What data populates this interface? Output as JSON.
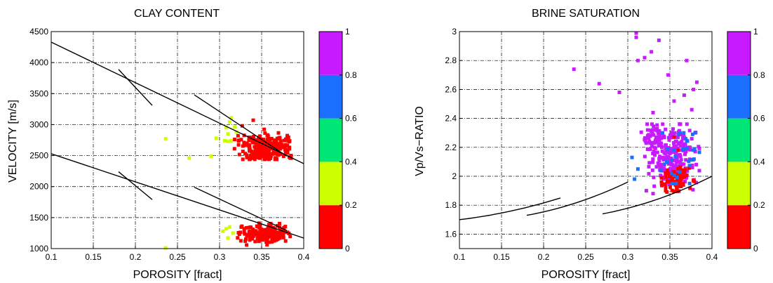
{
  "chart_data": [
    {
      "type": "scatter",
      "title": "CLAY CONTENT",
      "xlabel": "POROSITY [fract]",
      "ylabel": "VELOCITY [m/s]",
      "xlim": [
        0.1,
        0.4
      ],
      "ylim": [
        1000,
        4500
      ],
      "xticks": [
        "0.1",
        "0.15",
        "0.2",
        "0.25",
        "0.3",
        "0.35",
        "0.4"
      ],
      "yticks": [
        "1000",
        "1500",
        "2000",
        "2500",
        "3000",
        "3500",
        "4000",
        "4500"
      ],
      "grid": true,
      "colorbar": {
        "ticks": [
          "0",
          "0.2",
          "0.4",
          "0.6",
          "0.8",
          "1"
        ],
        "colors": [
          "#ff0000",
          "#ccff00",
          "#00e676",
          "#1a6fff",
          "#c81aff"
        ]
      },
      "trend_lines": [
        {
          "x": [
            0.1,
            0.4
          ],
          "y": [
            4330,
            2370
          ]
        },
        {
          "x": [
            0.18,
            0.22
          ],
          "y": [
            3890,
            3310
          ]
        },
        {
          "x": [
            0.27,
            0.38
          ],
          "y": [
            3480,
            2490
          ]
        },
        {
          "x": [
            0.1,
            0.4
          ],
          "y": [
            2530,
            1170
          ]
        },
        {
          "x": [
            0.18,
            0.22
          ],
          "y": [
            2240,
            1790
          ]
        },
        {
          "x": [
            0.27,
            0.38
          ],
          "y": [
            1990,
            1290
          ]
        }
      ],
      "clusters": [
        {
          "color": "#ff0000",
          "cx": 0.352,
          "cy": 2640,
          "sx": 0.016,
          "sy": 110,
          "n": 260,
          "xr": [
            0.315,
            0.385
          ],
          "yr": [
            2440,
            2950
          ]
        },
        {
          "color": "#ff0000",
          "cx": 0.355,
          "cy": 1240,
          "sx": 0.014,
          "sy": 70,
          "n": 190,
          "xr": [
            0.315,
            0.385
          ],
          "yr": [
            1030,
            1410
          ]
        }
      ],
      "points": [
        {
          "x": 0.236,
          "y": 2770,
          "color": "#ccff00"
        },
        {
          "x": 0.264,
          "y": 2460,
          "color": "#ccff00"
        },
        {
          "x": 0.29,
          "y": 2490,
          "color": "#ccff00"
        },
        {
          "x": 0.296,
          "y": 2780,
          "color": "#ccff00"
        },
        {
          "x": 0.306,
          "y": 2740,
          "color": "#ccff00"
        },
        {
          "x": 0.31,
          "y": 2730,
          "color": "#ccff00"
        },
        {
          "x": 0.314,
          "y": 2740,
          "color": "#ccff00"
        },
        {
          "x": 0.31,
          "y": 2850,
          "color": "#ccff00"
        },
        {
          "x": 0.312,
          "y": 3040,
          "color": "#ccff00"
        },
        {
          "x": 0.314,
          "y": 3110,
          "color": "#ccff00"
        },
        {
          "x": 0.318,
          "y": 2960,
          "color": "#ccff00"
        },
        {
          "x": 0.32,
          "y": 2880,
          "color": "#ccff00"
        },
        {
          "x": 0.308,
          "y": 2950,
          "color": "#ccff00"
        },
        {
          "x": 0.304,
          "y": 1280,
          "color": "#ccff00"
        },
        {
          "x": 0.308,
          "y": 1320,
          "color": "#ccff00"
        },
        {
          "x": 0.312,
          "y": 1350,
          "color": "#ccff00"
        },
        {
          "x": 0.316,
          "y": 1250,
          "color": "#ccff00"
        },
        {
          "x": 0.31,
          "y": 1170,
          "color": "#ccff00"
        },
        {
          "x": 0.236,
          "y": 1010,
          "color": "#ccff00"
        },
        {
          "x": 0.318,
          "y": 2760,
          "color": "#ff0000"
        },
        {
          "x": 0.322,
          "y": 2820,
          "color": "#ff0000"
        },
        {
          "x": 0.327,
          "y": 2980,
          "color": "#ff0000"
        },
        {
          "x": 0.34,
          "y": 3070,
          "color": "#ff0000"
        },
        {
          "x": 0.378,
          "y": 2600,
          "color": "#ff0000"
        },
        {
          "x": 0.383,
          "y": 2610,
          "color": "#ff0000"
        }
      ]
    },
    {
      "type": "scatter",
      "title": "BRINE SATURATION",
      "xlabel": "POROSITY [fract]",
      "ylabel": "Vp/Vs−RATIO",
      "xlim": [
        0.1,
        0.4
      ],
      "ylim": [
        1.5,
        3
      ],
      "xticks": [
        "0.1",
        "0.15",
        "0.2",
        "0.25",
        "0.3",
        "0.35",
        "0.4"
      ],
      "yticks": [
        "1.6",
        "1.8",
        "2",
        "2.2",
        "2.4",
        "2.6",
        "2.8",
        "3"
      ],
      "grid": true,
      "colorbar": {
        "ticks": [
          "0",
          "0.2",
          "0.4",
          "0.6",
          "0.8",
          "1"
        ],
        "colors": [
          "#ff0000",
          "#ccff00",
          "#00e676",
          "#1a6fff",
          "#c81aff"
        ]
      },
      "trend_lines": [
        {
          "x": [
            0.1,
            0.22
          ],
          "y": [
            1.7,
            1.85
          ],
          "curve": true
        },
        {
          "x": [
            0.18,
            0.3
          ],
          "y": [
            1.73,
            1.96
          ],
          "curve": true
        },
        {
          "x": [
            0.27,
            0.4
          ],
          "y": [
            1.74,
            2.0
          ],
          "curve": true
        }
      ],
      "clusters": [
        {
          "color": "#c81aff",
          "cx": 0.353,
          "cy": 2.13,
          "sx": 0.013,
          "sy": 0.1,
          "n": 240,
          "xr": [
            0.32,
            0.385
          ],
          "yr": [
            1.88,
            2.36
          ]
        },
        {
          "color": "#c81aff",
          "cx": 0.328,
          "cy": 2.24,
          "sx": 0.006,
          "sy": 0.05,
          "n": 40,
          "xr": [
            0.316,
            0.34
          ],
          "yr": [
            2.05,
            2.32
          ]
        },
        {
          "color": "#ff0000",
          "cx": 0.358,
          "cy": 1.97,
          "sx": 0.009,
          "sy": 0.05,
          "n": 70,
          "xr": [
            0.34,
            0.38
          ],
          "yr": [
            1.88,
            2.08
          ]
        },
        {
          "color": "#1a6fff",
          "cx": 0.36,
          "cy": 2.14,
          "sx": 0.014,
          "sy": 0.09,
          "n": 30,
          "xr": [
            0.31,
            0.385
          ],
          "yr": [
            1.95,
            2.3
          ]
        }
      ],
      "points": [
        {
          "x": 0.31,
          "y": 2.99,
          "color": "#c81aff"
        },
        {
          "x": 0.31,
          "y": 2.96,
          "color": "#c81aff"
        },
        {
          "x": 0.337,
          "y": 2.94,
          "color": "#c81aff"
        },
        {
          "x": 0.312,
          "y": 2.8,
          "color": "#c81aff"
        },
        {
          "x": 0.32,
          "y": 2.82,
          "color": "#c81aff"
        },
        {
          "x": 0.328,
          "y": 2.86,
          "color": "#c81aff"
        },
        {
          "x": 0.348,
          "y": 2.7,
          "color": "#c81aff"
        },
        {
          "x": 0.37,
          "y": 2.8,
          "color": "#c81aff"
        },
        {
          "x": 0.236,
          "y": 2.74,
          "color": "#c81aff"
        },
        {
          "x": 0.266,
          "y": 2.64,
          "color": "#c81aff"
        },
        {
          "x": 0.29,
          "y": 2.58,
          "color": "#c81aff"
        },
        {
          "x": 0.378,
          "y": 2.6,
          "color": "#c81aff"
        },
        {
          "x": 0.382,
          "y": 2.65,
          "color": "#c81aff"
        },
        {
          "x": 0.367,
          "y": 2.56,
          "color": "#c81aff"
        },
        {
          "x": 0.355,
          "y": 2.52,
          "color": "#c81aff"
        },
        {
          "x": 0.376,
          "y": 2.46,
          "color": "#c81aff"
        },
        {
          "x": 0.33,
          "y": 2.44,
          "color": "#c81aff"
        },
        {
          "x": 0.323,
          "y": 2.36,
          "color": "#c81aff"
        },
        {
          "x": 0.305,
          "y": 2.13,
          "color": "#1a6fff"
        },
        {
          "x": 0.312,
          "y": 2.05,
          "color": "#1a6fff"
        },
        {
          "x": 0.308,
          "y": 1.98,
          "color": "#1a6fff"
        },
        {
          "x": 0.38,
          "y": 2.3,
          "color": "#1a6fff"
        },
        {
          "x": 0.377,
          "y": 2.29,
          "color": "#1a6fff"
        },
        {
          "x": 0.33,
          "y": 1.88,
          "color": "#c81aff"
        },
        {
          "x": 0.322,
          "y": 1.9,
          "color": "#c81aff"
        },
        {
          "x": 0.348,
          "y": 2.02,
          "color": "#ff0000"
        },
        {
          "x": 0.36,
          "y": 2.18,
          "color": "#ff0000"
        },
        {
          "x": 0.355,
          "y": 2.27,
          "color": "#ff0000"
        },
        {
          "x": 0.345,
          "y": 1.9,
          "color": "#ff0000"
        }
      ]
    }
  ]
}
